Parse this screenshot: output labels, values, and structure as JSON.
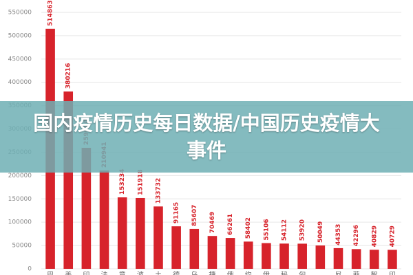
{
  "chart_data": {
    "type": "bar",
    "title": "国内疫情历史每日数据/中国历史疫情大事件",
    "categories": [
      "巴",
      "美",
      "印",
      "法",
      "意",
      "波",
      "土",
      "德",
      "乌",
      "捷",
      "俄",
      "约",
      "伊",
      "秘",
      "匈",
      null,
      "尼",
      "菲",
      "智",
      "印"
    ],
    "values": [
      514863,
      380216,
      259600,
      210941,
      153234,
      151918,
      133732,
      91165,
      85607,
      70469,
      66261,
      58402,
      55106,
      54112,
      53920,
      50049,
      44353,
      42296,
      40829,
      40729
    ],
    "color": "#d7232b",
    "ylim": [
      0,
      550000
    ],
    "yticks": [
      0,
      50000,
      100000,
      150000,
      200000,
      250000,
      300000,
      350000,
      400000,
      450000,
      500000,
      550000
    ],
    "grid": true
  }
}
